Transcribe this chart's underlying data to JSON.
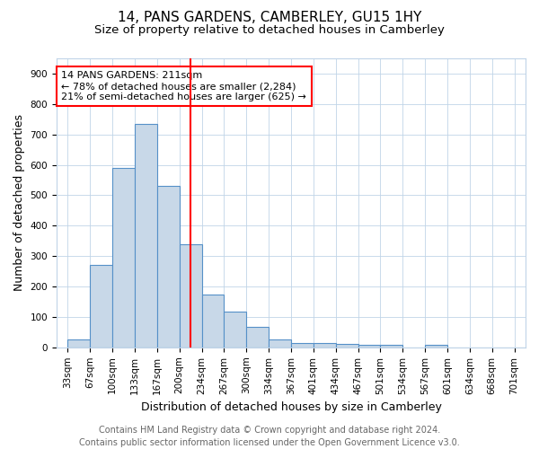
{
  "title": "14, PANS GARDENS, CAMBERLEY, GU15 1HY",
  "subtitle": "Size of property relative to detached houses in Camberley",
  "xlabel": "Distribution of detached houses by size in Camberley",
  "ylabel": "Number of detached properties",
  "footer_line1": "Contains HM Land Registry data © Crown copyright and database right 2024.",
  "footer_line2": "Contains public sector information licensed under the Open Government Licence v3.0.",
  "bin_labels": [
    "33sqm",
    "67sqm",
    "100sqm",
    "133sqm",
    "167sqm",
    "200sqm",
    "234sqm",
    "267sqm",
    "300sqm",
    "334sqm",
    "367sqm",
    "401sqm",
    "434sqm",
    "467sqm",
    "501sqm",
    "534sqm",
    "567sqm",
    "601sqm",
    "634sqm",
    "668sqm",
    "701sqm"
  ],
  "bar_heights": [
    27,
    270,
    590,
    735,
    530,
    340,
    175,
    117,
    67,
    25,
    15,
    13,
    10,
    8,
    7,
    0,
    7,
    0,
    0,
    0,
    0
  ],
  "bar_color": "#c8d8e8",
  "bar_edge_color": "#5590c8",
  "annotation_box_text": "14 PANS GARDENS: 211sqm\n← 78% of detached houses are smaller (2,284)\n21% of semi-detached houses are larger (625) →",
  "annotation_box_color": "white",
  "annotation_box_edge_color": "red",
  "vline_bin": 5.5,
  "vline_color": "red",
  "ylim": [
    0,
    950
  ],
  "yticks": [
    0,
    100,
    200,
    300,
    400,
    500,
    600,
    700,
    800,
    900
  ],
  "background_color": "white",
  "grid_color": "#c0d4e8",
  "title_fontsize": 11,
  "subtitle_fontsize": 9.5,
  "axis_label_fontsize": 9,
  "tick_fontsize": 7.5,
  "annotation_fontsize": 8,
  "footer_fontsize": 7
}
